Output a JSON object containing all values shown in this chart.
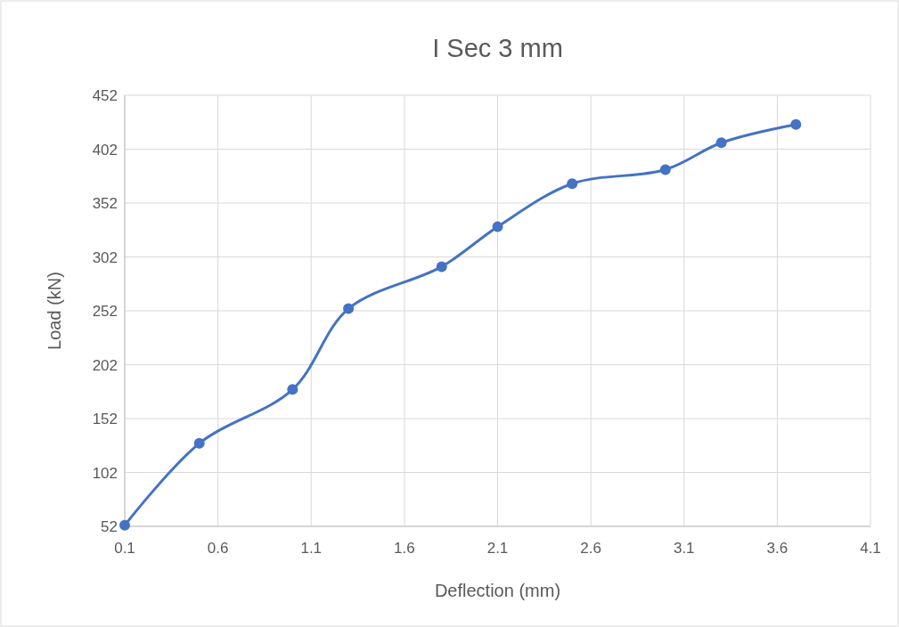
{
  "chart_data": {
    "type": "line",
    "title": "I Sec 3 mm",
    "xlabel": "Deflection (mm)",
    "ylabel": "Load (kN)",
    "x": [
      0.1,
      0.5,
      1.0,
      1.3,
      1.8,
      2.1,
      2.5,
      3.0,
      3.3,
      3.7
    ],
    "series": [
      {
        "color": "#4472c4",
        "values": [
          53,
          129,
          179,
          254,
          293,
          330,
          370,
          383,
          408,
          425
        ]
      }
    ],
    "xlim": [
      0.1,
      4.1
    ],
    "xticks": [
      0.1,
      0.6,
      1.1,
      1.6,
      2.1,
      2.6,
      3.1,
      3.6,
      4.1
    ],
    "ylim": [
      52,
      452
    ],
    "yticks": [
      52,
      102,
      152,
      202,
      252,
      302,
      352,
      402,
      452
    ],
    "grid": true,
    "marker": "circle",
    "line_style": "solid"
  }
}
